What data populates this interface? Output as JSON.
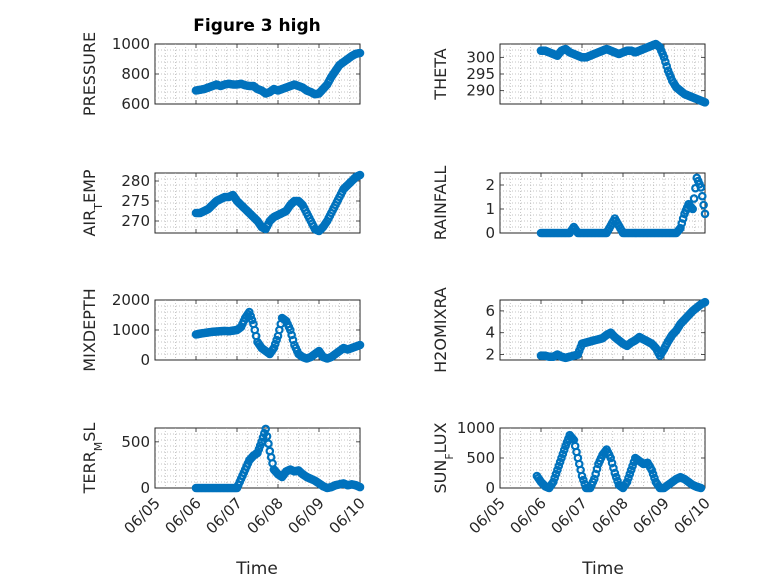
{
  "figure": {
    "title": "Figure 3 high",
    "xlabel": "Time"
  },
  "chart_data": [
    {
      "id": "pressure",
      "type": "scatter",
      "ylabel": "PRESSURE",
      "xlim": [
        5,
        10
      ],
      "ylim": [
        600,
        1000
      ],
      "yticks": [
        600,
        800,
        1000
      ],
      "x_points": [
        6.0,
        6.1,
        6.2,
        6.3,
        6.4,
        6.5,
        6.6,
        6.7,
        6.8,
        6.9,
        7.0,
        7.1,
        7.2,
        7.3,
        7.4,
        7.5,
        7.6,
        7.7,
        7.8,
        7.9,
        8.0,
        8.1,
        8.2,
        8.3,
        8.4,
        8.5,
        8.6,
        8.7,
        8.8,
        8.9,
        9.0,
        9.1,
        9.2,
        9.3,
        9.4,
        9.5,
        9.6,
        9.7,
        9.8,
        9.9,
        10.0
      ],
      "y_points": [
        690,
        695,
        700,
        710,
        720,
        730,
        720,
        730,
        735,
        730,
        730,
        735,
        725,
        720,
        720,
        700,
        690,
        670,
        680,
        700,
        690,
        700,
        710,
        720,
        730,
        720,
        710,
        690,
        680,
        665,
        670,
        700,
        730,
        780,
        820,
        860,
        880,
        900,
        920,
        935,
        940
      ]
    },
    {
      "id": "theta",
      "type": "scatter",
      "ylabel": "THETA",
      "xlim": [
        5,
        10
      ],
      "ylim": [
        286,
        304
      ],
      "yticks": [
        290,
        295,
        300
      ],
      "x_points": [
        6.0,
        6.1,
        6.2,
        6.3,
        6.4,
        6.5,
        6.6,
        6.7,
        6.8,
        6.9,
        7.0,
        7.1,
        7.2,
        7.3,
        7.4,
        7.5,
        7.6,
        7.7,
        7.8,
        7.9,
        8.0,
        8.1,
        8.2,
        8.3,
        8.4,
        8.5,
        8.6,
        8.7,
        8.8,
        8.9,
        9.0,
        9.1,
        9.2,
        9.3,
        9.4,
        9.5,
        9.6,
        9.7,
        9.8,
        9.9,
        10.0
      ],
      "y_points": [
        302,
        302,
        301.5,
        301,
        300.5,
        302,
        302.5,
        301.5,
        301,
        300.5,
        300,
        300,
        300.5,
        301,
        301.5,
        302,
        302.5,
        302,
        301.5,
        301,
        301.5,
        302,
        302,
        301.5,
        302,
        302.5,
        303,
        303.5,
        304,
        303,
        300,
        296,
        293,
        291,
        290,
        289,
        288.5,
        288,
        287.5,
        287,
        286.5
      ]
    },
    {
      "id": "air-temp",
      "type": "scatter",
      "ylabel": "AIR_TEMP",
      "xlim": [
        5,
        10
      ],
      "ylim": [
        267,
        282
      ],
      "yticks": [
        270,
        275,
        280
      ],
      "x_points": [
        6.0,
        6.1,
        6.2,
        6.3,
        6.4,
        6.5,
        6.6,
        6.7,
        6.8,
        6.9,
        7.0,
        7.1,
        7.2,
        7.3,
        7.4,
        7.5,
        7.6,
        7.7,
        7.8,
        7.9,
        8.0,
        8.1,
        8.2,
        8.3,
        8.4,
        8.5,
        8.6,
        8.7,
        8.8,
        8.9,
        9.0,
        9.1,
        9.2,
        9.3,
        9.4,
        9.5,
        9.6,
        9.7,
        9.8,
        9.9,
        10.0
      ],
      "y_points": [
        272,
        272,
        272.5,
        273,
        274,
        275,
        275.5,
        276,
        276,
        276.5,
        275,
        274,
        273,
        272,
        271,
        270,
        268.5,
        268,
        270,
        271,
        271.5,
        272,
        272.5,
        274,
        275,
        275,
        274,
        272,
        270,
        268,
        267.5,
        268.5,
        270,
        272,
        274,
        276,
        278,
        279,
        280,
        281,
        281.5
      ]
    },
    {
      "id": "rainfall",
      "type": "scatter",
      "ylabel": "RAINFALL",
      "xlim": [
        5,
        10
      ],
      "ylim": [
        0,
        2.5
      ],
      "yticks": [
        0,
        1,
        2
      ],
      "x_points": [
        6.0,
        6.1,
        6.2,
        6.3,
        6.4,
        6.5,
        6.6,
        6.7,
        6.8,
        6.9,
        7.0,
        7.1,
        7.2,
        7.3,
        7.4,
        7.5,
        7.6,
        7.7,
        7.8,
        7.9,
        8.0,
        8.1,
        8.2,
        8.3,
        8.4,
        8.5,
        8.6,
        8.7,
        8.8,
        8.9,
        9.0,
        9.1,
        9.2,
        9.3,
        9.4,
        9.5,
        9.6,
        9.7,
        9.8,
        9.9,
        10.0
      ],
      "y_points": [
        0,
        0,
        0,
        0,
        0,
        0,
        0,
        0,
        0.25,
        0,
        0,
        0,
        0,
        0,
        0,
        0,
        0,
        0.3,
        0.6,
        0.3,
        0,
        0,
        0,
        0,
        0,
        0,
        0,
        0,
        0,
        0,
        0,
        0,
        0,
        0,
        0.2,
        0.8,
        1.2,
        1.0,
        2.3,
        1.9,
        0.8
      ]
    },
    {
      "id": "mixdepth",
      "type": "scatter",
      "ylabel": "MIXDEPTH",
      "xlim": [
        5,
        10
      ],
      "ylim": [
        0,
        2000
      ],
      "yticks": [
        0,
        1000,
        2000
      ],
      "x_points": [
        6.0,
        6.1,
        6.2,
        6.3,
        6.4,
        6.5,
        6.6,
        6.7,
        6.8,
        6.9,
        7.0,
        7.1,
        7.2,
        7.3,
        7.4,
        7.5,
        7.6,
        7.7,
        7.8,
        7.9,
        8.0,
        8.1,
        8.2,
        8.3,
        8.4,
        8.5,
        8.6,
        8.7,
        8.8,
        8.9,
        9.0,
        9.1,
        9.2,
        9.3,
        9.4,
        9.5,
        9.6,
        9.7,
        9.8,
        9.9,
        10.0
      ],
      "y_points": [
        850,
        880,
        900,
        920,
        940,
        950,
        960,
        970,
        960,
        980,
        1000,
        1100,
        1400,
        1600,
        1200,
        600,
        400,
        300,
        200,
        400,
        800,
        1400,
        1300,
        1000,
        500,
        200,
        100,
        50,
        100,
        200,
        300,
        100,
        50,
        100,
        200,
        300,
        400,
        350,
        400,
        450,
        500
      ]
    },
    {
      "id": "h2omixra",
      "type": "scatter",
      "ylabel": "H2OMIXRA",
      "xlim": [
        5,
        10
      ],
      "ylim": [
        1.5,
        7
      ],
      "yticks": [
        2,
        4,
        6
      ],
      "x_points": [
        6.0,
        6.1,
        6.2,
        6.3,
        6.4,
        6.5,
        6.6,
        6.7,
        6.8,
        6.9,
        7.0,
        7.1,
        7.2,
        7.3,
        7.4,
        7.5,
        7.6,
        7.7,
        7.8,
        7.9,
        8.0,
        8.1,
        8.2,
        8.3,
        8.4,
        8.5,
        8.6,
        8.7,
        8.8,
        8.9,
        9.0,
        9.1,
        9.2,
        9.3,
        9.4,
        9.5,
        9.6,
        9.7,
        9.8,
        9.9,
        10.0
      ],
      "y_points": [
        1.9,
        1.9,
        1.8,
        1.8,
        2.0,
        1.8,
        1.7,
        1.8,
        1.9,
        2.0,
        3.0,
        3.1,
        3.2,
        3.3,
        3.4,
        3.5,
        3.8,
        4.0,
        3.6,
        3.3,
        3.0,
        2.8,
        3.1,
        3.3,
        3.6,
        3.4,
        3.2,
        3.0,
        2.6,
        1.9,
        2.5,
        3.2,
        3.8,
        4.2,
        4.8,
        5.2,
        5.6,
        6.0,
        6.3,
        6.6,
        6.8
      ]
    },
    {
      "id": "terr-msl",
      "type": "scatter",
      "ylabel": "TERR_MSL",
      "xlim": [
        5,
        10
      ],
      "ylim": [
        0,
        650
      ],
      "yticks": [
        0,
        500
      ],
      "x_points": [
        6.0,
        6.1,
        6.2,
        6.3,
        6.4,
        6.5,
        6.6,
        6.7,
        6.8,
        6.9,
        7.0,
        7.1,
        7.2,
        7.3,
        7.4,
        7.5,
        7.6,
        7.7,
        7.8,
        7.9,
        8.0,
        8.1,
        8.2,
        8.3,
        8.4,
        8.5,
        8.6,
        8.7,
        8.8,
        8.9,
        9.0,
        9.1,
        9.2,
        9.3,
        9.4,
        9.5,
        9.6,
        9.7,
        9.8,
        9.9,
        10.0
      ],
      "y_points": [
        0,
        0,
        0,
        0,
        0,
        0,
        0,
        0,
        0,
        0,
        0,
        100,
        200,
        300,
        350,
        380,
        500,
        640,
        400,
        200,
        150,
        120,
        180,
        200,
        180,
        190,
        150,
        120,
        100,
        80,
        50,
        20,
        0,
        10,
        30,
        40,
        50,
        30,
        40,
        30,
        10
      ]
    },
    {
      "id": "sun-flux",
      "type": "scatter",
      "ylabel": "SUN_FLUX",
      "xlim": [
        5,
        10
      ],
      "ylim": [
        0,
        1000
      ],
      "yticks": [
        0,
        500,
        1000
      ],
      "x_points": [
        5.9,
        6.0,
        6.1,
        6.2,
        6.3,
        6.4,
        6.5,
        6.6,
        6.7,
        6.8,
        6.9,
        7.0,
        7.1,
        7.2,
        7.3,
        7.4,
        7.5,
        7.6,
        7.7,
        7.8,
        7.9,
        8.0,
        8.1,
        8.2,
        8.3,
        8.4,
        8.5,
        8.6,
        8.7,
        8.8,
        8.9,
        9.0,
        9.1,
        9.2,
        9.3,
        9.4,
        9.5,
        9.6,
        9.7,
        9.8,
        9.9
      ],
      "y_points": [
        200,
        100,
        30,
        0,
        100,
        300,
        500,
        700,
        880,
        800,
        500,
        200,
        0,
        0,
        150,
        400,
        550,
        640,
        500,
        250,
        50,
        0,
        100,
        300,
        500,
        450,
        400,
        420,
        300,
        100,
        0,
        0,
        50,
        100,
        150,
        180,
        150,
        100,
        50,
        20,
        0
      ]
    }
  ],
  "x_tick_labels": [
    "06/05",
    "06/06",
    "06/07",
    "06/08",
    "06/09",
    "06/10"
  ],
  "colors": {
    "marker": "#0072BD",
    "axis": "#262626"
  }
}
